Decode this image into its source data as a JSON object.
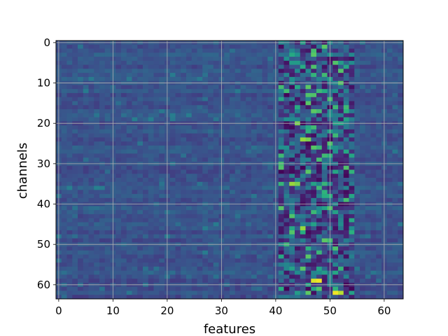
{
  "chart_data": {
    "type": "heatmap",
    "title": "",
    "xlabel": "features",
    "ylabel": "channels",
    "x_range": [
      -0.5,
      63.5
    ],
    "y_range": [
      63.5,
      -0.5
    ],
    "y_inverted": true,
    "x_ticks": [
      0,
      10,
      20,
      30,
      40,
      50,
      60
    ],
    "y_ticks": [
      0,
      10,
      20,
      30,
      40,
      50,
      60
    ],
    "x_tick_labels": [
      "0",
      "10",
      "20",
      "30",
      "40",
      "50",
      "60"
    ],
    "y_tick_labels": [
      "0",
      "10",
      "20",
      "30",
      "40",
      "50",
      "60"
    ],
    "grid": true,
    "colormap": "viridis",
    "rows": 64,
    "cols": 64,
    "notes": "Background cells are mostly low (dark blue ~0.25); a high-activity band appears between features 41 and 54.",
    "hotspots": [
      {
        "channel": 2,
        "feature": 48,
        "value": 0.05
      },
      {
        "channel": 5,
        "feature": 43,
        "value": 0.55
      },
      {
        "channel": 5,
        "feature": 44,
        "value": 0.55
      },
      {
        "channel": 4,
        "feature": 42,
        "value": 0.5
      },
      {
        "channel": 17,
        "feature": 47,
        "value": 0.75
      },
      {
        "channel": 17,
        "feature": 48,
        "value": 0.7
      },
      {
        "channel": 20,
        "feature": 44,
        "value": 0.8
      },
      {
        "channel": 24,
        "feature": 45,
        "value": 0.85
      },
      {
        "channel": 24,
        "feature": 46,
        "value": 0.8
      },
      {
        "channel": 35,
        "feature": 43,
        "value": 0.85
      },
      {
        "channel": 35,
        "feature": 44,
        "value": 0.8
      },
      {
        "channel": 46,
        "feature": 45,
        "value": 0.85
      },
      {
        "channel": 49,
        "feature": 49,
        "value": 0.75
      },
      {
        "channel": 49,
        "feature": 50,
        "value": 0.7
      },
      {
        "channel": 59,
        "feature": 47,
        "value": 0.95
      },
      {
        "channel": 59,
        "feature": 48,
        "value": 0.98
      },
      {
        "channel": 62,
        "feature": 51,
        "value": 0.98
      },
      {
        "channel": 62,
        "feature": 52,
        "value": 0.9
      },
      {
        "channel": 62,
        "feature": 46,
        "value": 0.75
      }
    ]
  }
}
